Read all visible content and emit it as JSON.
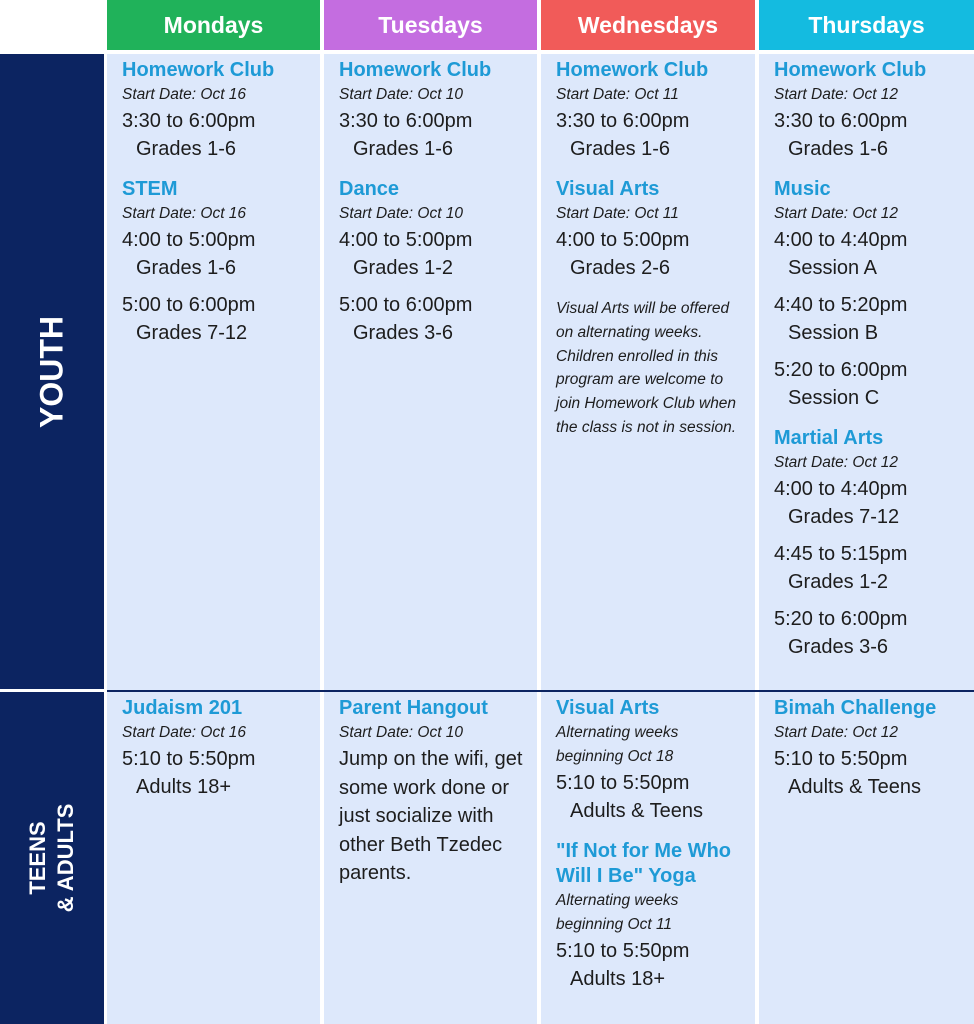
{
  "schedule": {
    "days": [
      {
        "label": "Mondays",
        "color": "#20b25a"
      },
      {
        "label": "Tuesdays",
        "color": "#c46de0"
      },
      {
        "label": "Wednesdays",
        "color": "#f15b59"
      },
      {
        "label": "Thursdays",
        "color": "#14bbe0"
      }
    ],
    "rows": [
      {
        "label": "YOUTH",
        "cells": [
          {
            "programs": [
              {
                "title": "Homework Club",
                "start": "Start Date: Oct 16",
                "sessions": [
                  {
                    "time": "3:30 to 6:00pm",
                    "group": "Grades 1-6"
                  }
                ]
              },
              {
                "title": "STEM",
                "start": "Start Date: Oct 16",
                "sessions": [
                  {
                    "time": "4:00 to 5:00pm",
                    "group": "Grades 1-6"
                  },
                  {
                    "time": "5:00 to 6:00pm",
                    "group": "Grades 7-12"
                  }
                ]
              }
            ]
          },
          {
            "programs": [
              {
                "title": "Homework Club",
                "start": "Start Date: Oct 10",
                "sessions": [
                  {
                    "time": "3:30 to 6:00pm",
                    "group": "Grades 1-6"
                  }
                ]
              },
              {
                "title": "Dance",
                "start": "Start Date: Oct 10",
                "sessions": [
                  {
                    "time": "4:00 to 5:00pm",
                    "group": "Grades 1-2"
                  },
                  {
                    "time": "5:00 to 6:00pm",
                    "group": "Grades 3-6"
                  }
                ]
              }
            ]
          },
          {
            "programs": [
              {
                "title": "Homework Club",
                "start": "Start Date: Oct 11",
                "sessions": [
                  {
                    "time": "3:30 to 6:00pm",
                    "group": "Grades 1-6"
                  }
                ]
              },
              {
                "title": "Visual Arts",
                "start": "Start Date: Oct 11",
                "sessions": [
                  {
                    "time": "4:00 to 5:00pm",
                    "group": "Grades 2-6"
                  }
                ],
                "note": "Visual Arts will be offered on alternating weeks. Children enrolled in this program are welcome to join Homework Club when the class is not in session."
              }
            ]
          },
          {
            "programs": [
              {
                "title": "Homework Club",
                "start": "Start Date: Oct 12",
                "sessions": [
                  {
                    "time": "3:30 to 6:00pm",
                    "group": "Grades 1-6"
                  }
                ]
              },
              {
                "title": "Music",
                "start": "Start Date: Oct 12",
                "sessions": [
                  {
                    "time": "4:00 to 4:40pm",
                    "group": "Session A"
                  },
                  {
                    "time": "4:40 to 5:20pm",
                    "group": "Session B"
                  },
                  {
                    "time": "5:20 to 6:00pm",
                    "group": "Session C"
                  }
                ]
              },
              {
                "title": "Martial Arts",
                "start": "Start Date: Oct 12",
                "sessions": [
                  {
                    "time": "4:00 to 4:40pm",
                    "group": "Grades 7-12"
                  },
                  {
                    "time": "4:45 to 5:15pm",
                    "group": "Grades 1-2"
                  },
                  {
                    "time": "5:20 to 6:00pm",
                    "group": "Grades 3-6"
                  }
                ]
              }
            ]
          }
        ]
      },
      {
        "label": [
          "TEENS",
          "& ADULTS"
        ],
        "cells": [
          {
            "programs": [
              {
                "title": "Judaism 201",
                "start": "Start Date: Oct 16",
                "sessions": [
                  {
                    "time": "5:10 to 5:50pm",
                    "group": "Adults 18+"
                  }
                ]
              }
            ]
          },
          {
            "programs": [
              {
                "title": "Parent Hangout",
                "start": "Start Date: Oct 10",
                "desc": "Jump on the wifi, get some work done or just socialize with other Beth Tzedec parents."
              }
            ]
          },
          {
            "programs": [
              {
                "title": "Visual Arts",
                "start": [
                  "Alternating weeks",
                  "beginning Oct 18"
                ],
                "sessions": [
                  {
                    "time": "5:10 to 5:50pm",
                    "group": "Adults & Teens"
                  }
                ]
              },
              {
                "title": "\"If Not for Me Who Will I Be\" Yoga",
                "start": [
                  "Alternating weeks",
                  "beginning Oct 11"
                ],
                "sessions": [
                  {
                    "time": "5:10 to 5:50pm",
                    "group": "Adults 18+"
                  }
                ]
              }
            ]
          },
          {
            "programs": [
              {
                "title": "Bimah Challenge",
                "start": "Start Date: Oct 12",
                "sessions": [
                  {
                    "time": "5:10 to 5:50pm",
                    "group": "Adults & Teens"
                  }
                ]
              }
            ]
          }
        ]
      }
    ]
  }
}
